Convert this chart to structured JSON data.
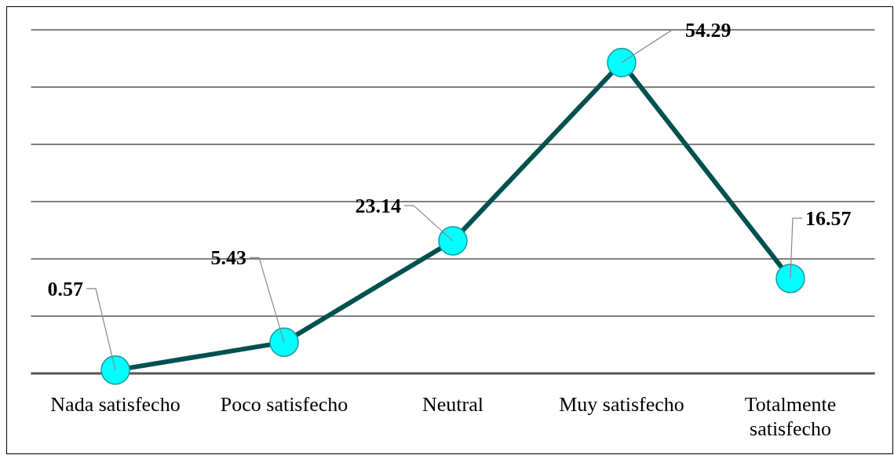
{
  "chart_data": {
    "type": "line",
    "categories": [
      "Nada satisfecho",
      "Poco satisfecho",
      "Neutral",
      "Muy satisfecho",
      "Totalmente satisfecho"
    ],
    "series": [
      {
        "color": "#005050",
        "values": [
          0.57,
          5.43,
          23.14,
          54.29,
          16.57
        ]
      }
    ],
    "ylim": [
      0,
      60
    ],
    "yticks": [
      {
        "value": 0,
        "label": null
      },
      {
        "value": 10,
        "label": null
      },
      {
        "value": 20,
        "label": null
      },
      {
        "value": 30,
        "label": null
      },
      {
        "value": 40,
        "label": null
      },
      {
        "value": 50,
        "label": null
      },
      {
        "value": 60,
        "label": null
      }
    ],
    "grid": "y",
    "marker": "circle",
    "data_labels": true,
    "tick_labels": "x"
  }
}
